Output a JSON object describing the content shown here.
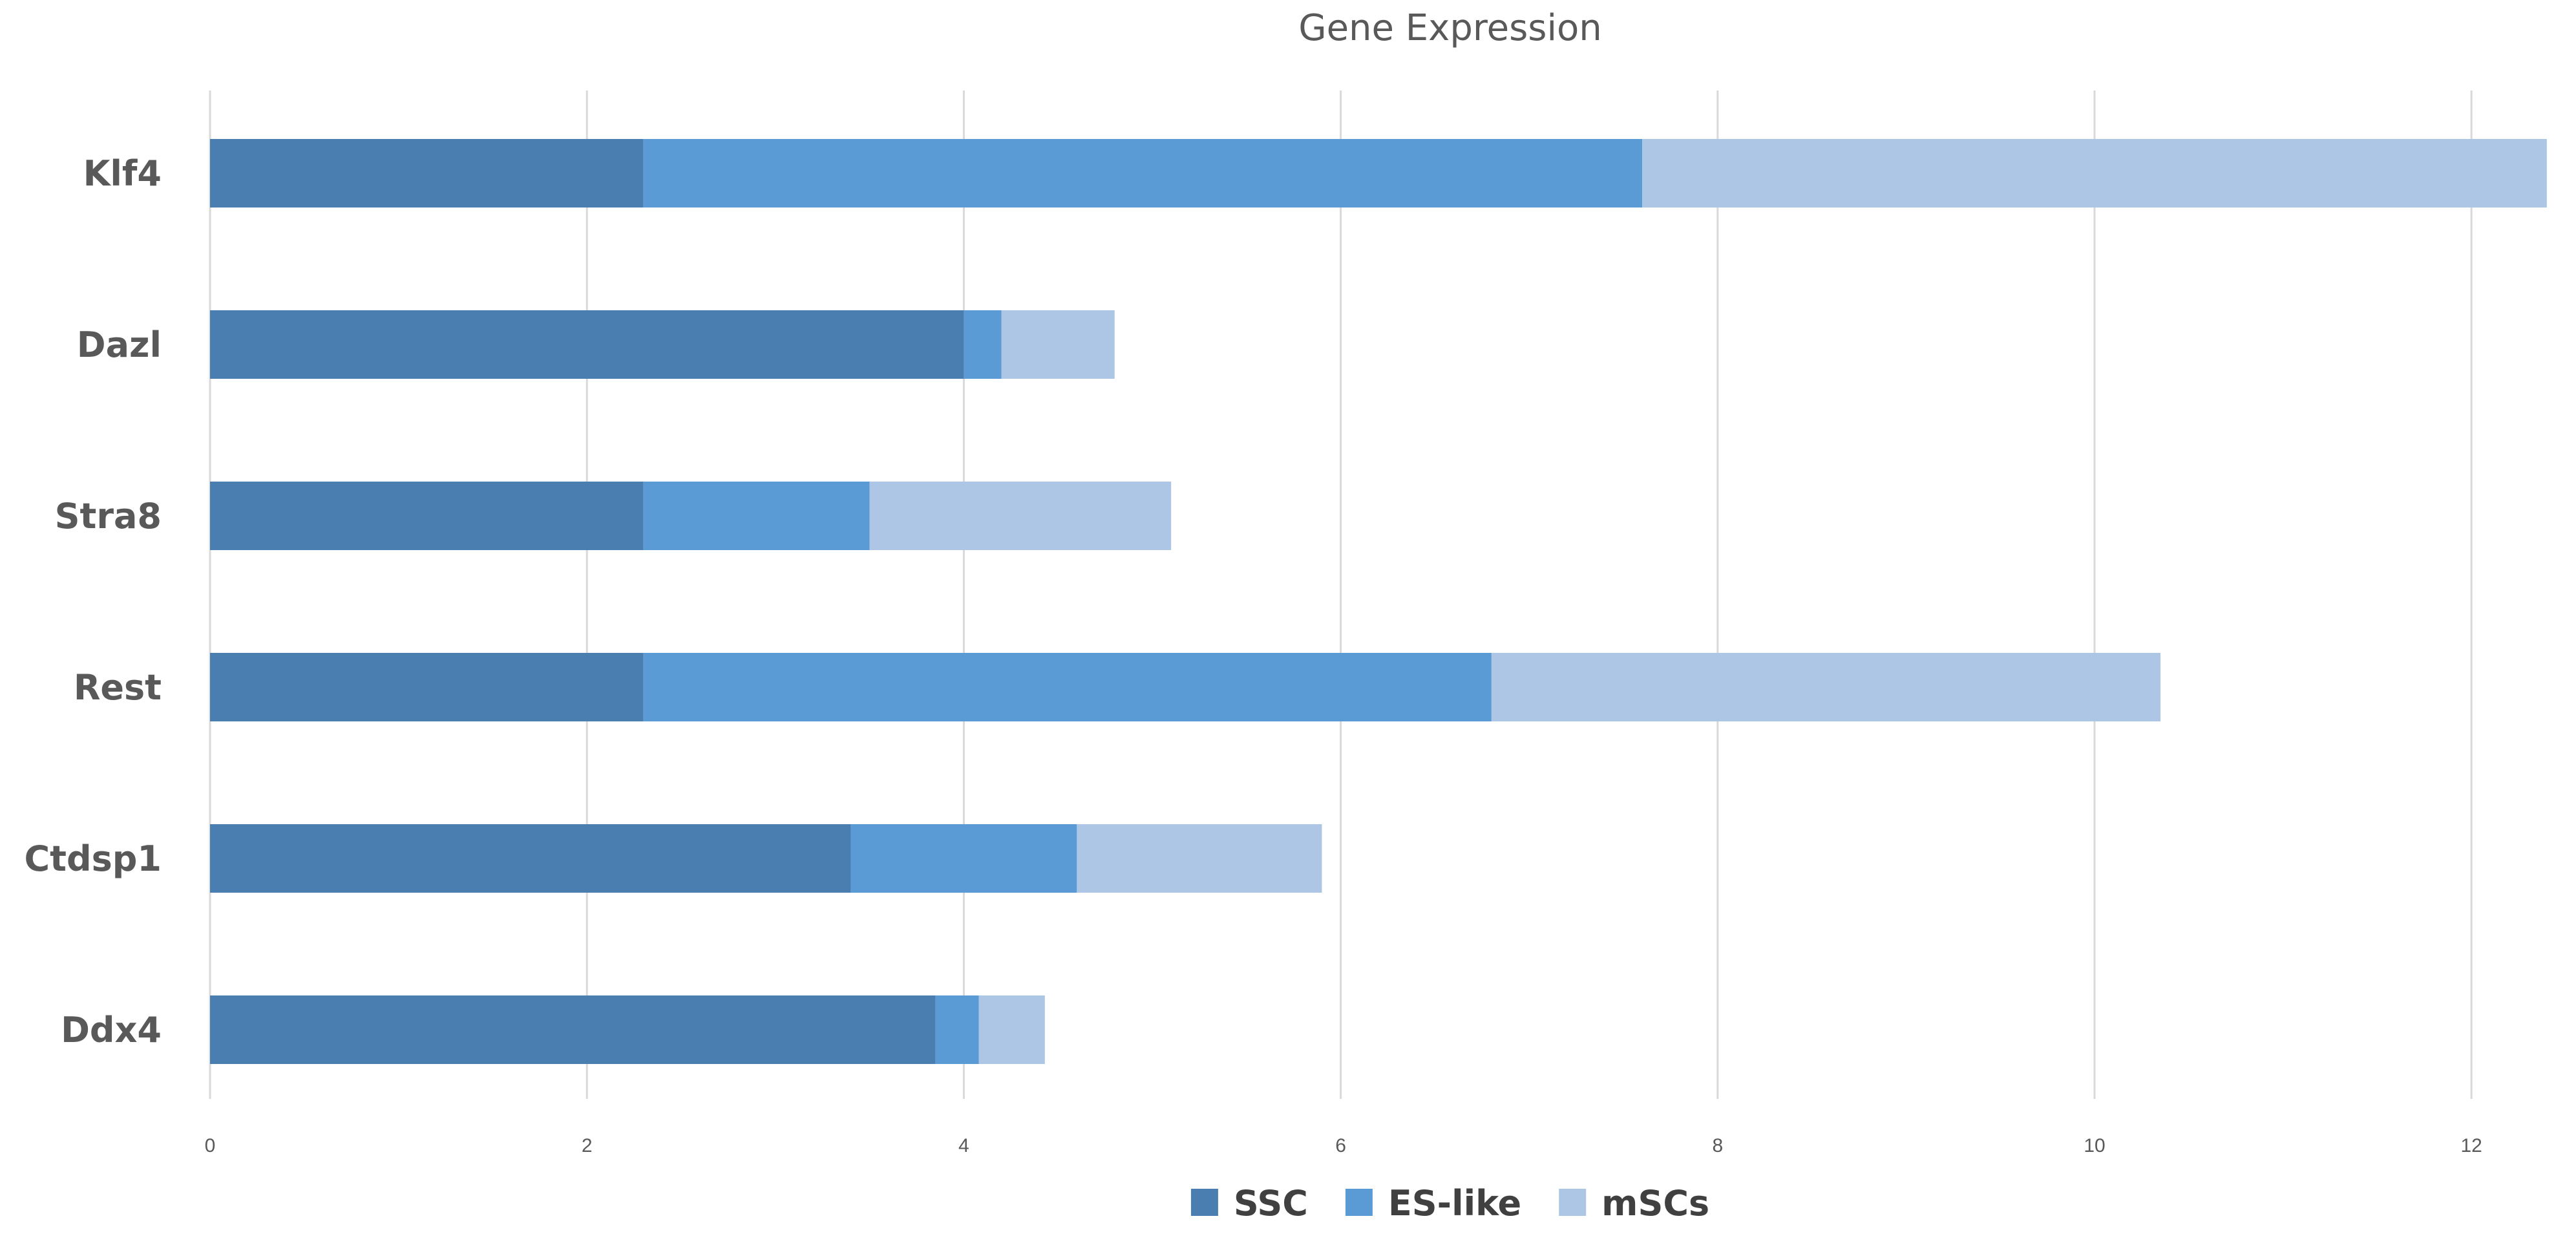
{
  "chart_data": {
    "type": "bar",
    "orientation": "horizontal",
    "stacked": true,
    "title": "Gene Expression",
    "xlabel": "",
    "ylabel": "",
    "xlim": [
      0,
      12.5
    ],
    "x_ticks": [
      0,
      2,
      4,
      6,
      8,
      10,
      12
    ],
    "grid": true,
    "legend_position": "bottom",
    "categories": [
      "Klf4",
      "Dazl",
      "Stra8",
      "Rest",
      "Ctdsp1",
      "Ddx4"
    ],
    "series": [
      {
        "name": "SSC",
        "color": "#4a7eb0",
        "values": [
          2.3,
          4.0,
          2.3,
          2.3,
          3.4,
          3.85
        ]
      },
      {
        "name": "ES-like",
        "color": "#5b9bd5",
        "values": [
          5.3,
          0.2,
          1.2,
          4.5,
          1.2,
          0.23
        ]
      },
      {
        "name": "mSCs",
        "color": "#adc6e5",
        "values": [
          4.8,
          0.6,
          1.6,
          3.55,
          1.3,
          0.35
        ]
      }
    ]
  }
}
